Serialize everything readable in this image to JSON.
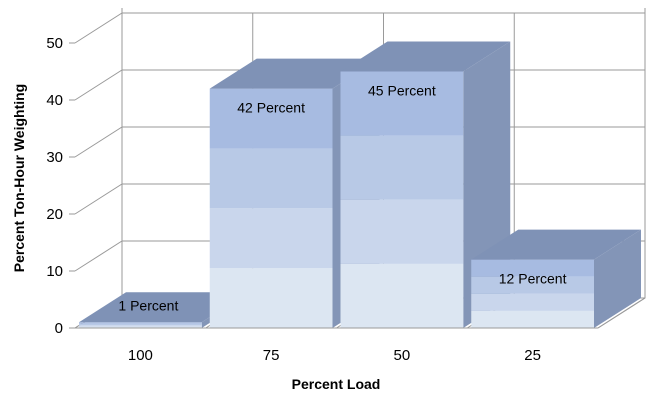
{
  "chart_data": {
    "type": "bar",
    "style": "3d-column",
    "categories": [
      "100",
      "75",
      "50",
      "25"
    ],
    "values": [
      1,
      42,
      45,
      12
    ],
    "data_labels": [
      "1 Percent",
      "42 Percent",
      "45 Percent",
      "12 Percent"
    ],
    "xlabel": "Percent Load",
    "ylabel": "Percent Ton-Hour Weighting",
    "ylim": [
      0,
      50
    ],
    "yticks": [
      "0",
      "10",
      "20",
      "30",
      "40",
      "50"
    ],
    "grid": true,
    "legend": "none",
    "colors": {
      "front_bands": [
        "#dce6f2",
        "#c9d6ec",
        "#b8c9e6",
        "#a7bbe1"
      ],
      "top": "#7f92b6",
      "side": "#8395b7",
      "grid": "#9a9a9a"
    }
  }
}
